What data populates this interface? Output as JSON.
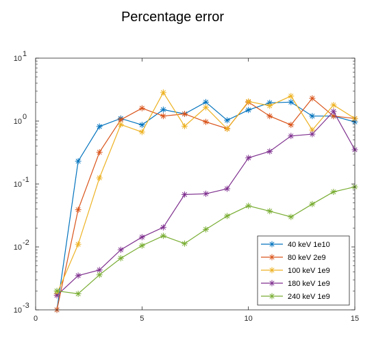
{
  "chart_data": {
    "type": "line",
    "title": "Percentage error",
    "xlabel": "",
    "ylabel": "",
    "xlim": [
      0,
      15
    ],
    "ylim": [
      0.001,
      10
    ],
    "yscale": "log",
    "grid": false,
    "legend_position": "bottom-right",
    "x_ticks": [
      0,
      5,
      10,
      15
    ],
    "y_ticks": [
      {
        "value": 0.001,
        "base": "10",
        "exp": "-3"
      },
      {
        "value": 0.01,
        "base": "10",
        "exp": "-2"
      },
      {
        "value": 0.1,
        "base": "10",
        "exp": "-1"
      },
      {
        "value": 1,
        "base": "10",
        "exp": "0"
      },
      {
        "value": 10,
        "base": "10",
        "exp": "1"
      }
    ],
    "marker": "asterisk",
    "x": [
      1,
      2,
      3,
      4,
      5,
      6,
      7,
      8,
      9,
      10,
      11,
      12,
      13,
      14,
      15
    ],
    "series": [
      {
        "name": "40 keV 1e10",
        "color": "#0072BD",
        "values": [
          0.001,
          0.23,
          0.82,
          1.1,
          0.87,
          1.52,
          1.3,
          2.0,
          1.03,
          1.5,
          1.95,
          2.0,
          1.2,
          1.2,
          0.97
        ]
      },
      {
        "name": "80 keV 2e9",
        "color": "#D95319",
        "values": [
          0.001,
          0.039,
          0.32,
          1.05,
          1.6,
          1.2,
          1.3,
          0.97,
          0.76,
          2.0,
          1.2,
          0.87,
          2.3,
          1.2,
          1.1
        ]
      },
      {
        "name": "100 keV 1e9",
        "color": "#EDB120",
        "values": [
          0.0018,
          0.011,
          0.125,
          0.88,
          0.67,
          2.85,
          0.83,
          1.65,
          0.75,
          2.05,
          1.75,
          2.5,
          0.72,
          1.8,
          1.1
        ]
      },
      {
        "name": "180 keV 1e9",
        "color": "#7E2F8E",
        "values": [
          0.0017,
          0.0035,
          0.0043,
          0.009,
          0.0143,
          0.0205,
          0.068,
          0.07,
          0.084,
          0.26,
          0.33,
          0.58,
          0.62,
          1.42,
          0.35
        ]
      },
      {
        "name": "240 keV 1e9",
        "color": "#77AC30",
        "values": [
          0.002,
          0.0018,
          0.0036,
          0.0066,
          0.0105,
          0.015,
          0.0113,
          0.019,
          0.031,
          0.045,
          0.037,
          0.03,
          0.048,
          0.075,
          0.09
        ]
      }
    ]
  }
}
